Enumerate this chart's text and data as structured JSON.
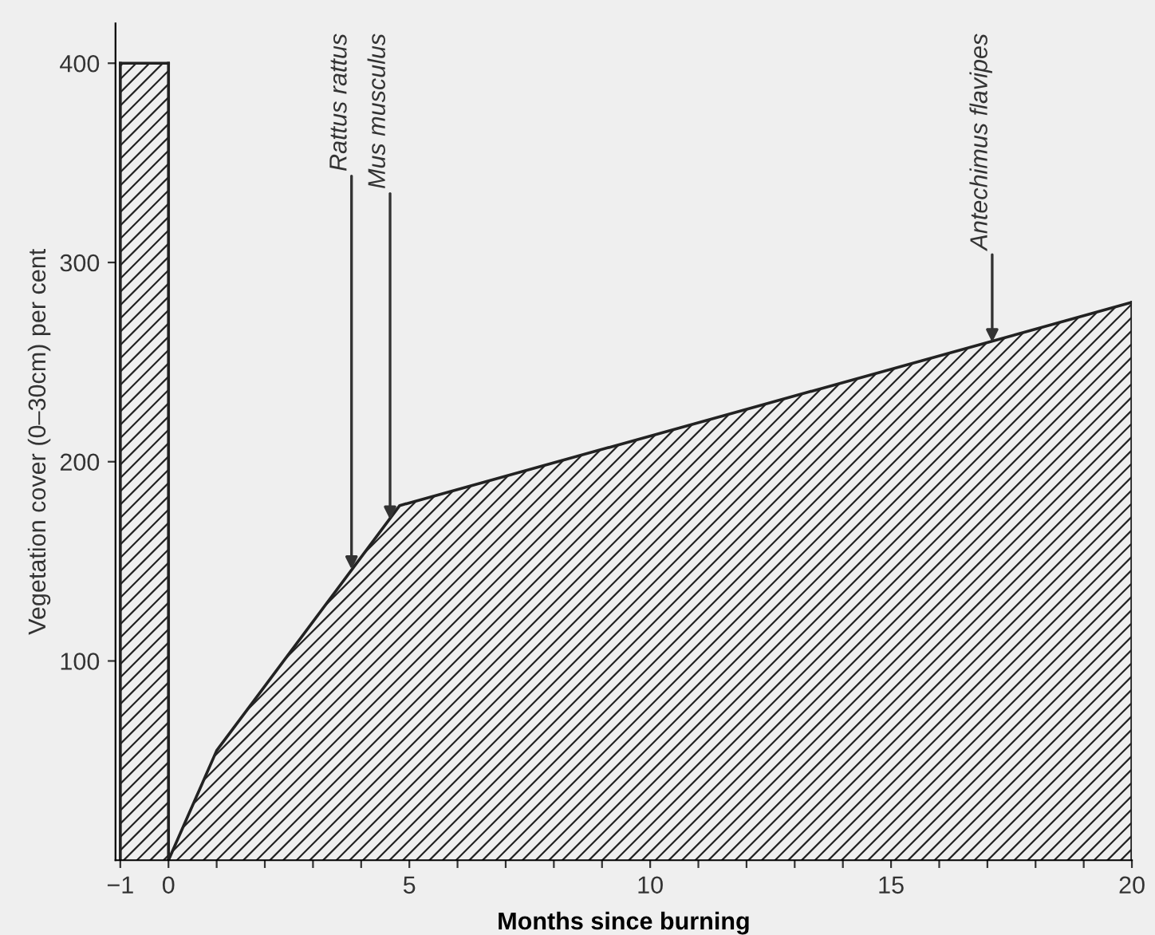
{
  "chart_data": {
    "type": "area",
    "xlabel": "Months since burning",
    "ylabel": "Vegetation cover (0–30cm) per cent",
    "series": [
      {
        "x": [
          -1,
          0
        ],
        "values": [
          400,
          400
        ],
        "color": "#222222"
      },
      {
        "x": [
          0,
          1,
          4.8,
          20
        ],
        "values": [
          0,
          55,
          178,
          280
        ],
        "color": "#222222"
      }
    ],
    "xlim": [
      -1.1,
      20
    ],
    "ylim": [
      0,
      420
    ],
    "xticks": [
      {
        "value": -1,
        "label": "−1"
      },
      0,
      {
        "value": 1,
        "label": null
      },
      {
        "value": 2,
        "label": null
      },
      {
        "value": 3,
        "label": null
      },
      {
        "value": 4,
        "label": null
      },
      5,
      {
        "value": 6,
        "label": null
      },
      {
        "value": 7,
        "label": null
      },
      {
        "value": 8,
        "label": null
      },
      {
        "value": 9,
        "label": null
      },
      10,
      {
        "value": 11,
        "label": null
      },
      {
        "value": 12,
        "label": null
      },
      {
        "value": 13,
        "label": null
      },
      {
        "value": 14,
        "label": null
      },
      15,
      {
        "value": 16,
        "label": null
      },
      {
        "value": 17,
        "label": null
      },
      {
        "value": 18,
        "label": null
      },
      {
        "value": 19,
        "label": null
      },
      20
    ],
    "yticks": [
      100,
      200,
      300,
      400
    ],
    "annotations": [
      {
        "text": "Rattus rattus",
        "x": 3.8,
        "y": 146
      },
      {
        "text": "Mus musculus",
        "x": 4.6,
        "y": 171
      },
      {
        "text": "Antechimus flavipes",
        "x": 17.1,
        "y": 260
      }
    ]
  }
}
